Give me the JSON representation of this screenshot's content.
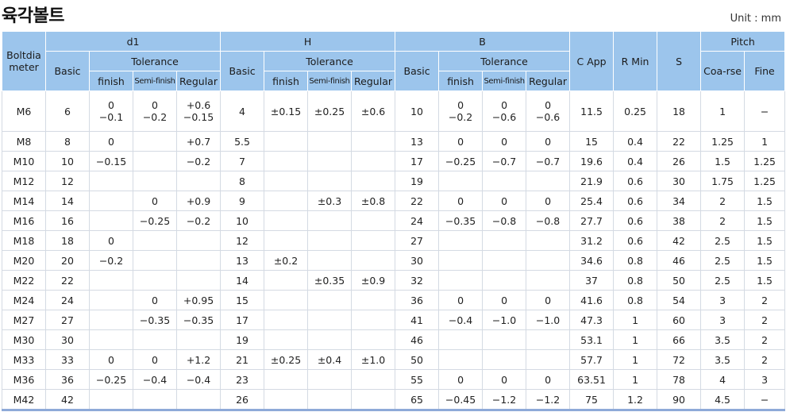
{
  "title": "육각볼트",
  "unit": "Unit : mm",
  "headers": {
    "boltdia": "Boltdia meter",
    "d1": "d1",
    "h": "H",
    "b": "B",
    "c": "C App",
    "r": "R Min",
    "s": "S",
    "pitch": "Pitch",
    "basic": "Basic",
    "tolerance": "Tolerance",
    "finish": "finish",
    "semi_finish": "Semi-finish",
    "regular": "Regular",
    "coarse": "Coa-rse",
    "fine": "Fine"
  },
  "rows": [
    [
      "M6",
      "6",
      "0\n−0.1",
      "0\n−0.2",
      "+0.6\n−0.15",
      "4",
      "±0.15",
      "±0.25",
      "±0.6",
      "10",
      "0\n−0.2",
      "0\n−0.6",
      "0\n−0.6",
      "11.5",
      "0.25",
      "18",
      "1",
      "−"
    ],
    [
      "M8",
      "8",
      "0",
      "",
      "+0.7",
      "5.5",
      "",
      "",
      "",
      "13",
      "0",
      "0",
      "0",
      "15",
      "0.4",
      "22",
      "1.25",
      "1"
    ],
    [
      "M10",
      "10",
      "−0.15",
      "",
      "−0.2",
      "7",
      "",
      "",
      "",
      "17",
      "−0.25",
      "−0.7",
      "−0.7",
      "19.6",
      "0.4",
      "26",
      "1.5",
      "1.25"
    ],
    [
      "M12",
      "12",
      "",
      "",
      "",
      "8",
      "",
      "",
      "",
      "19",
      "",
      "",
      "",
      "21.9",
      "0.6",
      "30",
      "1.75",
      "1.25"
    ],
    [
      "M14",
      "14",
      "",
      "0",
      "+0.9",
      "9",
      "",
      "±0.3",
      "±0.8",
      "22",
      "0",
      "0",
      "0",
      "25.4",
      "0.6",
      "34",
      "2",
      "1.5"
    ],
    [
      "M16",
      "16",
      "",
      "−0.25",
      "−0.2",
      "10",
      "",
      "",
      "",
      "24",
      "−0.35",
      "−0.8",
      "−0.8",
      "27.7",
      "0.6",
      "38",
      "2",
      "1.5"
    ],
    [
      "M18",
      "18",
      "0",
      "",
      "",
      "12",
      "",
      "",
      "",
      "27",
      "",
      "",
      "",
      "31.2",
      "0.6",
      "42",
      "2.5",
      "1.5"
    ],
    [
      "M20",
      "20",
      "−0.2",
      "",
      "",
      "13",
      "±0.2",
      "",
      "",
      "30",
      "",
      "",
      "",
      "34.6",
      "0.8",
      "46",
      "2.5",
      "1.5"
    ],
    [
      "M22",
      "22",
      "",
      "",
      "",
      "14",
      "",
      "±0.35",
      "±0.9",
      "32",
      "",
      "",
      "",
      "37",
      "0.8",
      "50",
      "2.5",
      "1.5"
    ],
    [
      "M24",
      "24",
      "",
      "0",
      "+0.95",
      "15",
      "",
      "",
      "",
      "36",
      "0",
      "0",
      "0",
      "41.6",
      "0.8",
      "54",
      "3",
      "2"
    ],
    [
      "M27",
      "27",
      "",
      "−0.35",
      "−0.35",
      "17",
      "",
      "",
      "",
      "41",
      "−0.4",
      "−1.0",
      "−1.0",
      "47.3",
      "1",
      "60",
      "3",
      "2"
    ],
    [
      "M30",
      "30",
      "",
      "",
      "",
      "19",
      "",
      "",
      "",
      "46",
      "",
      "",
      "",
      "53.1",
      "1",
      "66",
      "3.5",
      "2"
    ],
    [
      "M33",
      "33",
      "0",
      "0",
      "+1.2",
      "21",
      "±0.25",
      "±0.4",
      "±1.0",
      "50",
      "",
      "",
      "",
      "57.7",
      "1",
      "72",
      "3.5",
      "2"
    ],
    [
      "M36",
      "36",
      "−0.25",
      "−0.4",
      "−0.4",
      "23",
      "",
      "",
      "",
      "55",
      "0",
      "0",
      "0",
      "63.51",
      "1",
      "78",
      "4",
      "3"
    ],
    [
      "M42",
      "42",
      "",
      "",
      "",
      "26",
      "",
      "",
      "",
      "65",
      "−0.45",
      "−1.2",
      "−1.2",
      "75",
      "1.2",
      "90",
      "4.5",
      "−"
    ]
  ]
}
